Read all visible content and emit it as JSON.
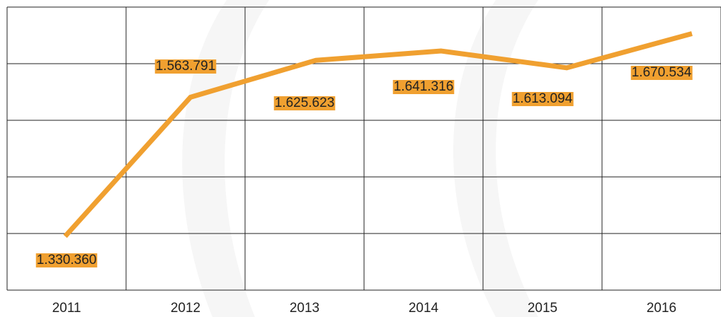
{
  "chart_data": {
    "type": "line",
    "categories": [
      "2011",
      "2012",
      "2013",
      "2014",
      "2015",
      "2016"
    ],
    "series": [
      {
        "color": "#f0a030",
        "values": [
          1330360,
          1563791,
          1625623,
          1641316,
          1613094,
          1670534
        ],
        "value_labels": [
          "1.330.360",
          "1.563.791",
          "1.625.623",
          "1.641.316",
          "1.613.094",
          "1.670.534"
        ]
      }
    ],
    "ylim": [
      1240000,
      1715000
    ],
    "yticks": [
      1240000,
      1335000,
      1430000,
      1525000,
      1620000,
      1715000
    ],
    "grid": true
  }
}
